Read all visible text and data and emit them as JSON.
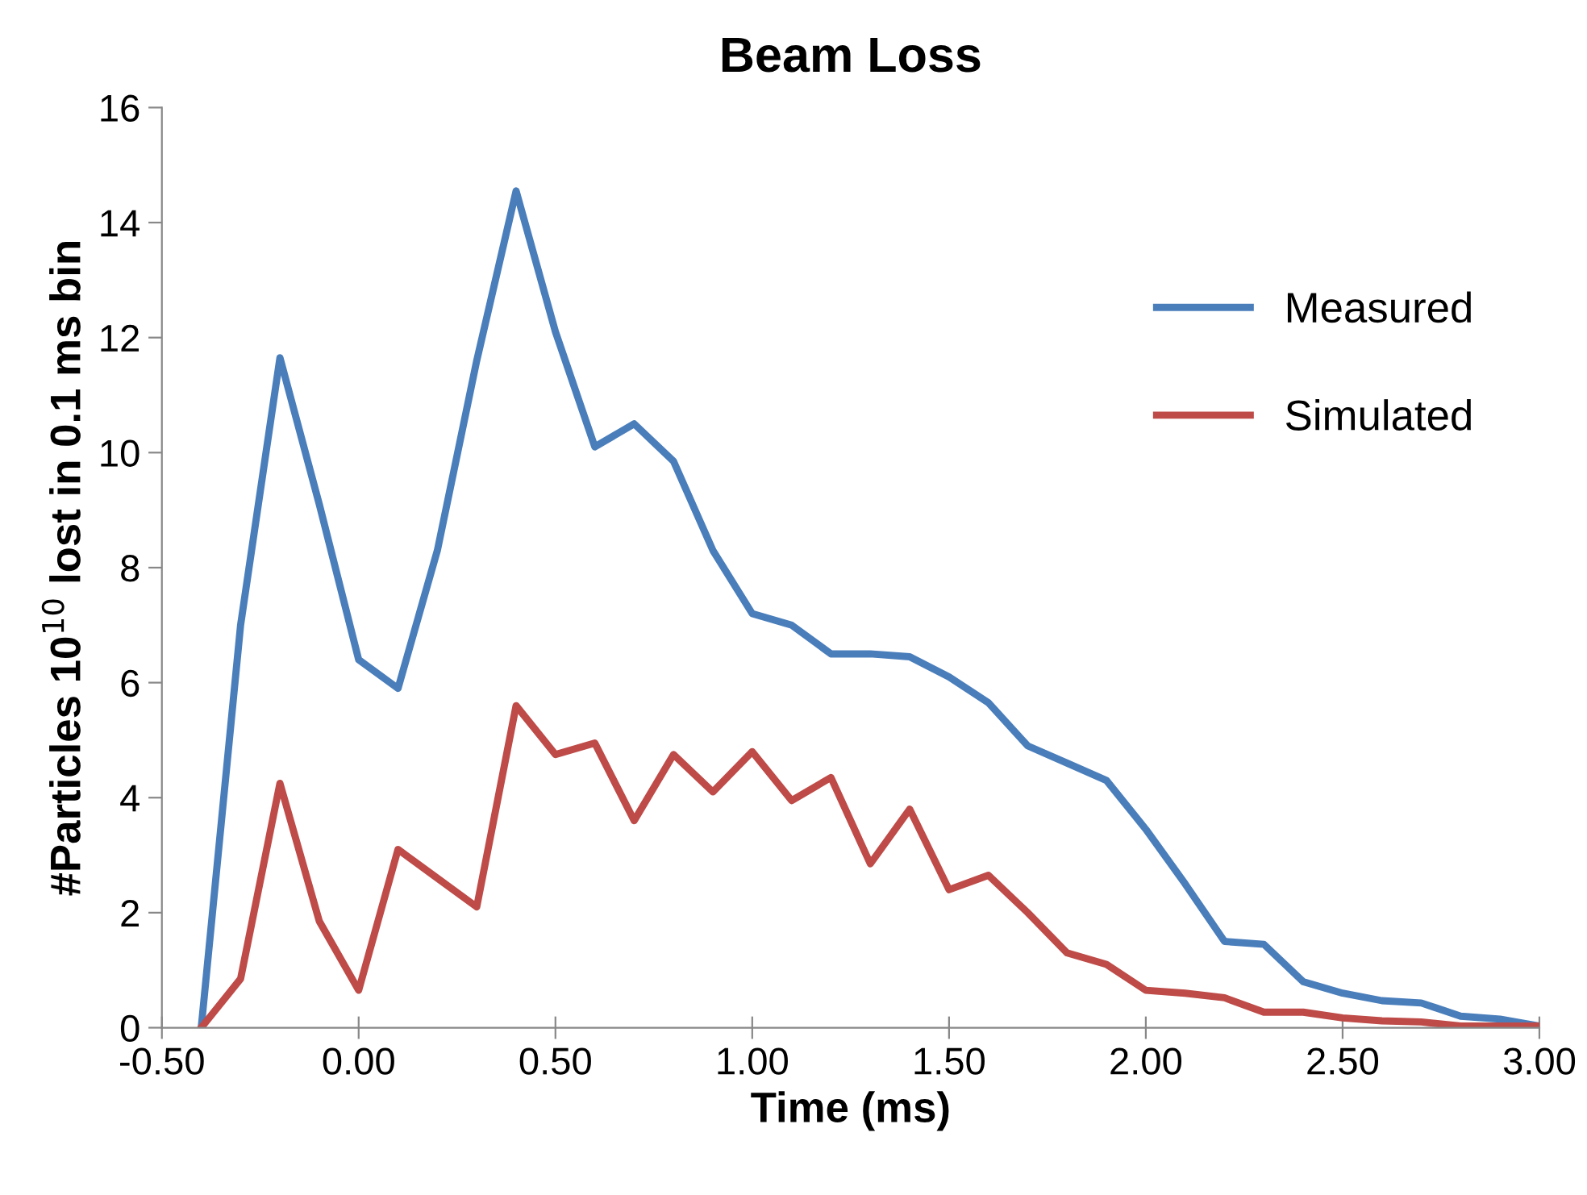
{
  "chart_data": {
    "type": "line",
    "title": "Beam Loss",
    "xlabel": "Time (ms)",
    "ylabel": "#Particles 10$^{10}$ lost in 0.1 ms bin",
    "x": [
      -0.4,
      -0.3,
      -0.2,
      -0.1,
      0.0,
      0.1,
      0.2,
      0.3,
      0.4,
      0.5,
      0.6,
      0.7,
      0.8,
      0.9,
      1.0,
      1.1,
      1.2,
      1.3,
      1.4,
      1.5,
      1.6,
      1.7,
      1.8,
      1.9,
      2.0,
      2.1,
      2.2,
      2.3,
      2.4,
      2.5,
      2.6,
      2.7,
      2.8,
      2.9,
      3.0
    ],
    "series": [
      {
        "name": "Measured",
        "color": "#4a7ebb",
        "values": [
          0,
          7.0,
          11.65,
          9.1,
          6.4,
          5.9,
          8.3,
          11.6,
          14.55,
          12.1,
          10.1,
          10.5,
          9.85,
          8.3,
          7.2,
          7.0,
          6.5,
          6.5,
          6.45,
          6.1,
          5.65,
          4.9,
          4.6,
          4.3,
          3.45,
          2.5,
          1.5,
          1.45,
          0.8,
          0.6,
          0.47,
          0.43,
          0.2,
          0.15,
          0.03
        ]
      },
      {
        "name": "Simulated",
        "color": "#be4b48",
        "values": [
          0,
          0.85,
          4.25,
          1.85,
          0.65,
          3.1,
          2.6,
          2.1,
          5.6,
          4.75,
          4.95,
          3.6,
          4.75,
          4.1,
          4.8,
          3.95,
          4.35,
          2.85,
          3.8,
          2.4,
          2.65,
          2.0,
          1.3,
          1.1,
          0.65,
          0.6,
          0.52,
          0.27,
          0.27,
          0.17,
          0.12,
          0.1,
          0.03,
          0.03,
          0.03
        ]
      }
    ],
    "xlim": [
      -0.5,
      3.0
    ],
    "xticks": [
      {
        "value": -0.5,
        "label": "-0.50"
      },
      {
        "value": 0,
        "label": "0.00"
      },
      {
        "value": 0.5,
        "label": "0.50"
      },
      {
        "value": 1.0,
        "label": "1.00"
      },
      {
        "value": 1.5,
        "label": "1.50"
      },
      {
        "value": 2.0,
        "label": "2.00"
      },
      {
        "value": 2.5,
        "label": "2.50"
      },
      {
        "value": 3.0,
        "label": "3.00"
      }
    ],
    "ylim": [
      0,
      16
    ],
    "yticks": [
      0,
      2,
      4,
      6,
      8,
      10,
      12,
      14,
      16
    ],
    "legend": "right",
    "grid": false,
    "marker": "none",
    "line_style": "solid"
  }
}
